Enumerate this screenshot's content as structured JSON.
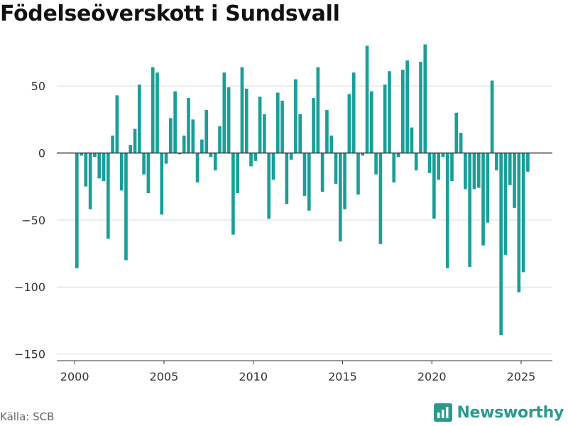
{
  "header": {
    "title": "Födelseöverskott i Sundsvall"
  },
  "footer": {
    "source": "Källa: SCB",
    "brand": "Newsworthy"
  },
  "colors": {
    "bar": "#1a9e98",
    "grid": "#d9d9d9",
    "zero_line": "#333333",
    "brand": "#2b9a8d"
  },
  "icons": {
    "brand_logo": "bar-chart-logo-icon"
  },
  "chart_data": {
    "type": "bar",
    "title": "Födelseöverskott i Sundsvall",
    "xlabel": "",
    "ylabel": "",
    "ylim": [
      -155,
      85
    ],
    "xlim": [
      1999.0,
      2026.75
    ],
    "grid": true,
    "legend": "none",
    "x_ticks": [
      2000,
      2005,
      2010,
      2015,
      2020,
      2025
    ],
    "x_tick_labels": [
      "2000",
      "2005",
      "2010",
      "2015",
      "2020",
      "2025"
    ],
    "y_ticks": [
      -150,
      -100,
      -50,
      0,
      50
    ],
    "y_tick_labels": [
      "−150",
      "−100",
      "−50",
      "0",
      "50"
    ],
    "frequency": "quarterly",
    "start": "2000 Q1",
    "values": [
      -86,
      -2,
      -25,
      -42,
      -3,
      -19,
      -21,
      -64,
      13,
      43,
      -28,
      -80,
      6,
      18,
      51,
      -16,
      -30,
      64,
      60,
      -46,
      -8,
      26,
      46,
      -1,
      13,
      41,
      25,
      -22,
      10,
      32,
      -3,
      -13,
      20,
      60,
      49,
      -61,
      -30,
      64,
      48,
      -10,
      -6,
      42,
      29,
      -49,
      -20,
      45,
      39,
      -38,
      -5,
      55,
      29,
      -32,
      -43,
      41,
      64,
      -29,
      32,
      13,
      -23,
      -66,
      -42,
      44,
      60,
      -31,
      -2,
      80,
      46,
      -16,
      -68,
      51,
      61,
      -22,
      -3,
      62,
      69,
      19,
      -13,
      68,
      81,
      -15,
      -49,
      -20,
      -3,
      -86,
      -21,
      30,
      15,
      -27,
      -85,
      -27,
      -26,
      -69,
      -52,
      54,
      -13,
      -136,
      -76,
      -24,
      -41,
      -104,
      -89,
      -14
    ]
  }
}
